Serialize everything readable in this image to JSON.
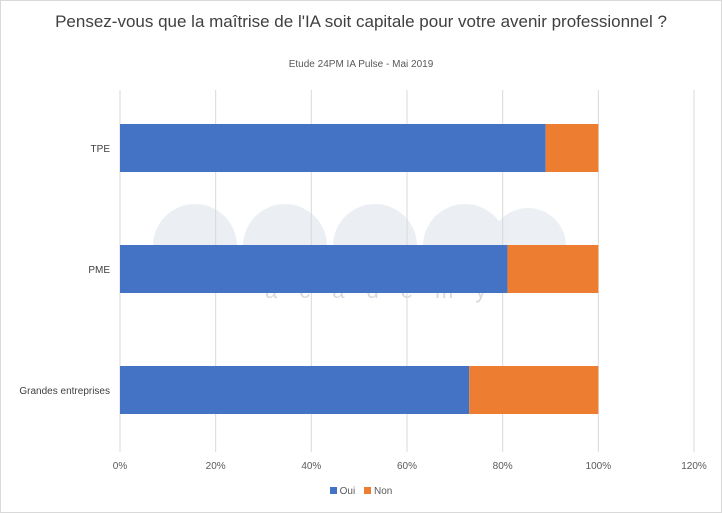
{
  "chart_data": {
    "type": "bar",
    "orientation": "horizontal",
    "stacked": true,
    "title": "Pensez-vous que la maîtrise de l'IA soit capitale pour votre avenir professionnel ?",
    "subtitle": "Etude 24PM IA Pulse - Mai 2019",
    "categories": [
      "TPE",
      "PME",
      "Grandes entreprises"
    ],
    "series": [
      {
        "name": "Oui",
        "color": "#4472c4",
        "values": [
          89,
          81,
          73
        ]
      },
      {
        "name": "Non",
        "color": "#ed7d31",
        "values": [
          11,
          19,
          27
        ]
      }
    ],
    "x_ticks": [
      "0%",
      "20%",
      "40%",
      "60%",
      "80%",
      "100%",
      "120%"
    ],
    "xlim": [
      0,
      120
    ],
    "grid": "vertical",
    "legend_position": "bottom",
    "watermark": "24pm academy"
  }
}
